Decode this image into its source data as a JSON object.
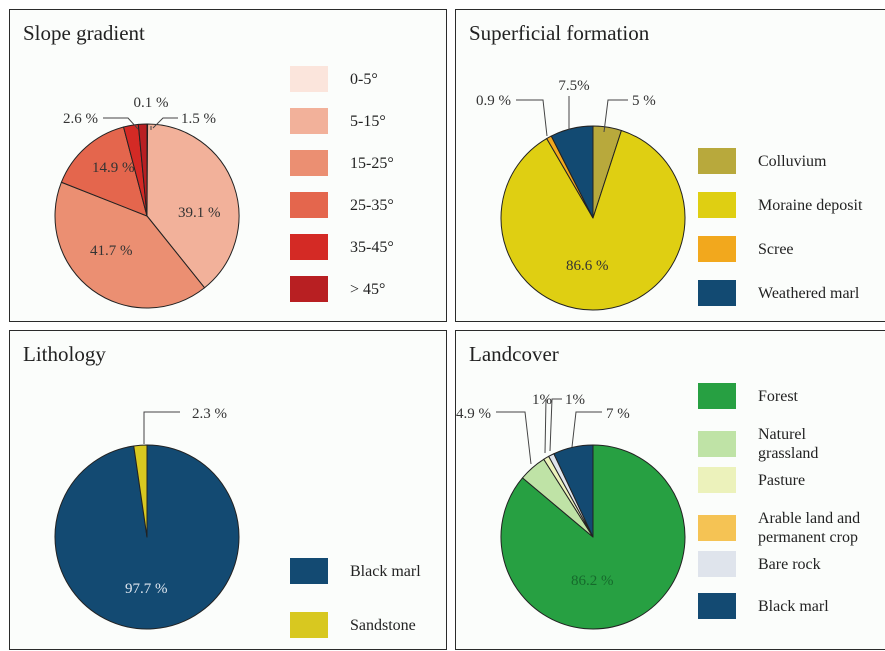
{
  "chart_data": [
    {
      "type": "pie",
      "title": "Slope gradient",
      "slices": [
        {
          "label": "0-5°",
          "value": 0.1,
          "display": "0.1 %",
          "color": "#fbe5dc"
        },
        {
          "label": "5-15°",
          "value": 39.1,
          "display": "39.1 %",
          "color": "#f2b19a"
        },
        {
          "label": "15-25°",
          "value": 41.7,
          "display": "41.7 %",
          "color": "#eb8f72"
        },
        {
          "label": "25-35°",
          "value": 14.9,
          "display": "14.9 %",
          "color": "#e4664d"
        },
        {
          "label": "35-45°",
          "value": 2.6,
          "display": "2.6 %",
          "color": "#d42a25"
        },
        {
          "label": "> 45°",
          "value": 1.5,
          "display": "1.5 %",
          "color": "#b81f22"
        }
      ]
    },
    {
      "type": "pie",
      "title": "Superficial formation",
      "slices": [
        {
          "label": "Colluvium",
          "value": 5,
          "display": "5 %",
          "color": "#b8a93c"
        },
        {
          "label": "Moraine deposit",
          "value": 86.6,
          "display": "86.6 %",
          "color": "#dfcf12"
        },
        {
          "label": "Scree",
          "value": 0.9,
          "display": "0.9 %",
          "color": "#f2a81d"
        },
        {
          "label": "Weathered marl",
          "value": 7.5,
          "display": "7.5%",
          "color": "#124a72"
        }
      ]
    },
    {
      "type": "pie",
      "title": "Lithology",
      "slices": [
        {
          "label": "Black marl",
          "value": 97.7,
          "display": "97.7 %",
          "color": "#134a72"
        },
        {
          "label": "Sandstone",
          "value": 2.3,
          "display": "2.3 %",
          "color": "#d8c820"
        }
      ]
    },
    {
      "type": "pie",
      "title": "Landcover",
      "slices": [
        {
          "label": "Forest",
          "value": 86.2,
          "display": "86.2 %",
          "color": "#27a042"
        },
        {
          "label": "Naturel\ngrassland",
          "value": 4.9,
          "display": "4.9 %",
          "color": "#bfe3a6"
        },
        {
          "label": "Pasture",
          "value": 1,
          "display": "1%",
          "color": "#ecf2bb"
        },
        {
          "label": "Arable land and\npermanent crop",
          "value": 0,
          "display": "",
          "color": "#f5c354"
        },
        {
          "label": "Bare rock",
          "value": 1,
          "display": "1%",
          "color": "#dfe4ec"
        },
        {
          "label": "Black marl",
          "value": 7,
          "display": "7 %",
          "color": "#134a72"
        }
      ]
    }
  ]
}
